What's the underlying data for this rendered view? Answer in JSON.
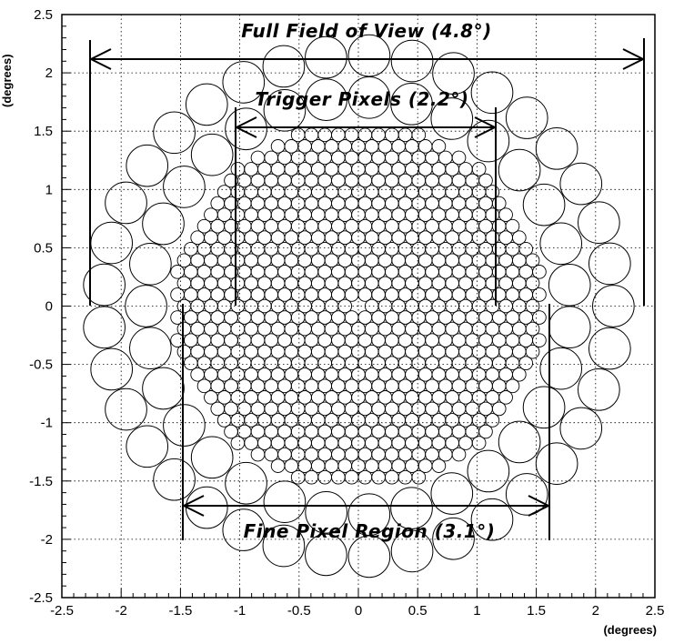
{
  "figure": {
    "y_unit_label": "(degrees)",
    "x_unit_label": "(degrees)",
    "x_ticks": [
      "-2.5",
      "-2",
      "-1.5",
      "-1",
      "-0.5",
      "0",
      "0.5",
      "1",
      "1.5",
      "2",
      "2.5"
    ],
    "y_ticks": [
      "2.5",
      "2",
      "1.5",
      "1",
      "0.5",
      "0",
      "-0.5",
      "-1",
      "-1.5",
      "-2",
      "-2.5"
    ],
    "xlim": [
      -2.5,
      2.5
    ],
    "ylim": [
      -2.5,
      2.5
    ],
    "grid": true
  },
  "annotations": {
    "full_fov": {
      "label": "Full Field of View (4.8°)",
      "span_deg": 4.8
    },
    "trigger": {
      "label": "Trigger Pixels (2.2°)",
      "span_deg": 2.2
    },
    "fine": {
      "label": "Fine Pixel Region (3.1°)",
      "span_deg": 3.1
    }
  },
  "camera": {
    "small_pixel_spacing_deg": 0.113,
    "large_pixel_diameter_deg": 0.35
  }
}
